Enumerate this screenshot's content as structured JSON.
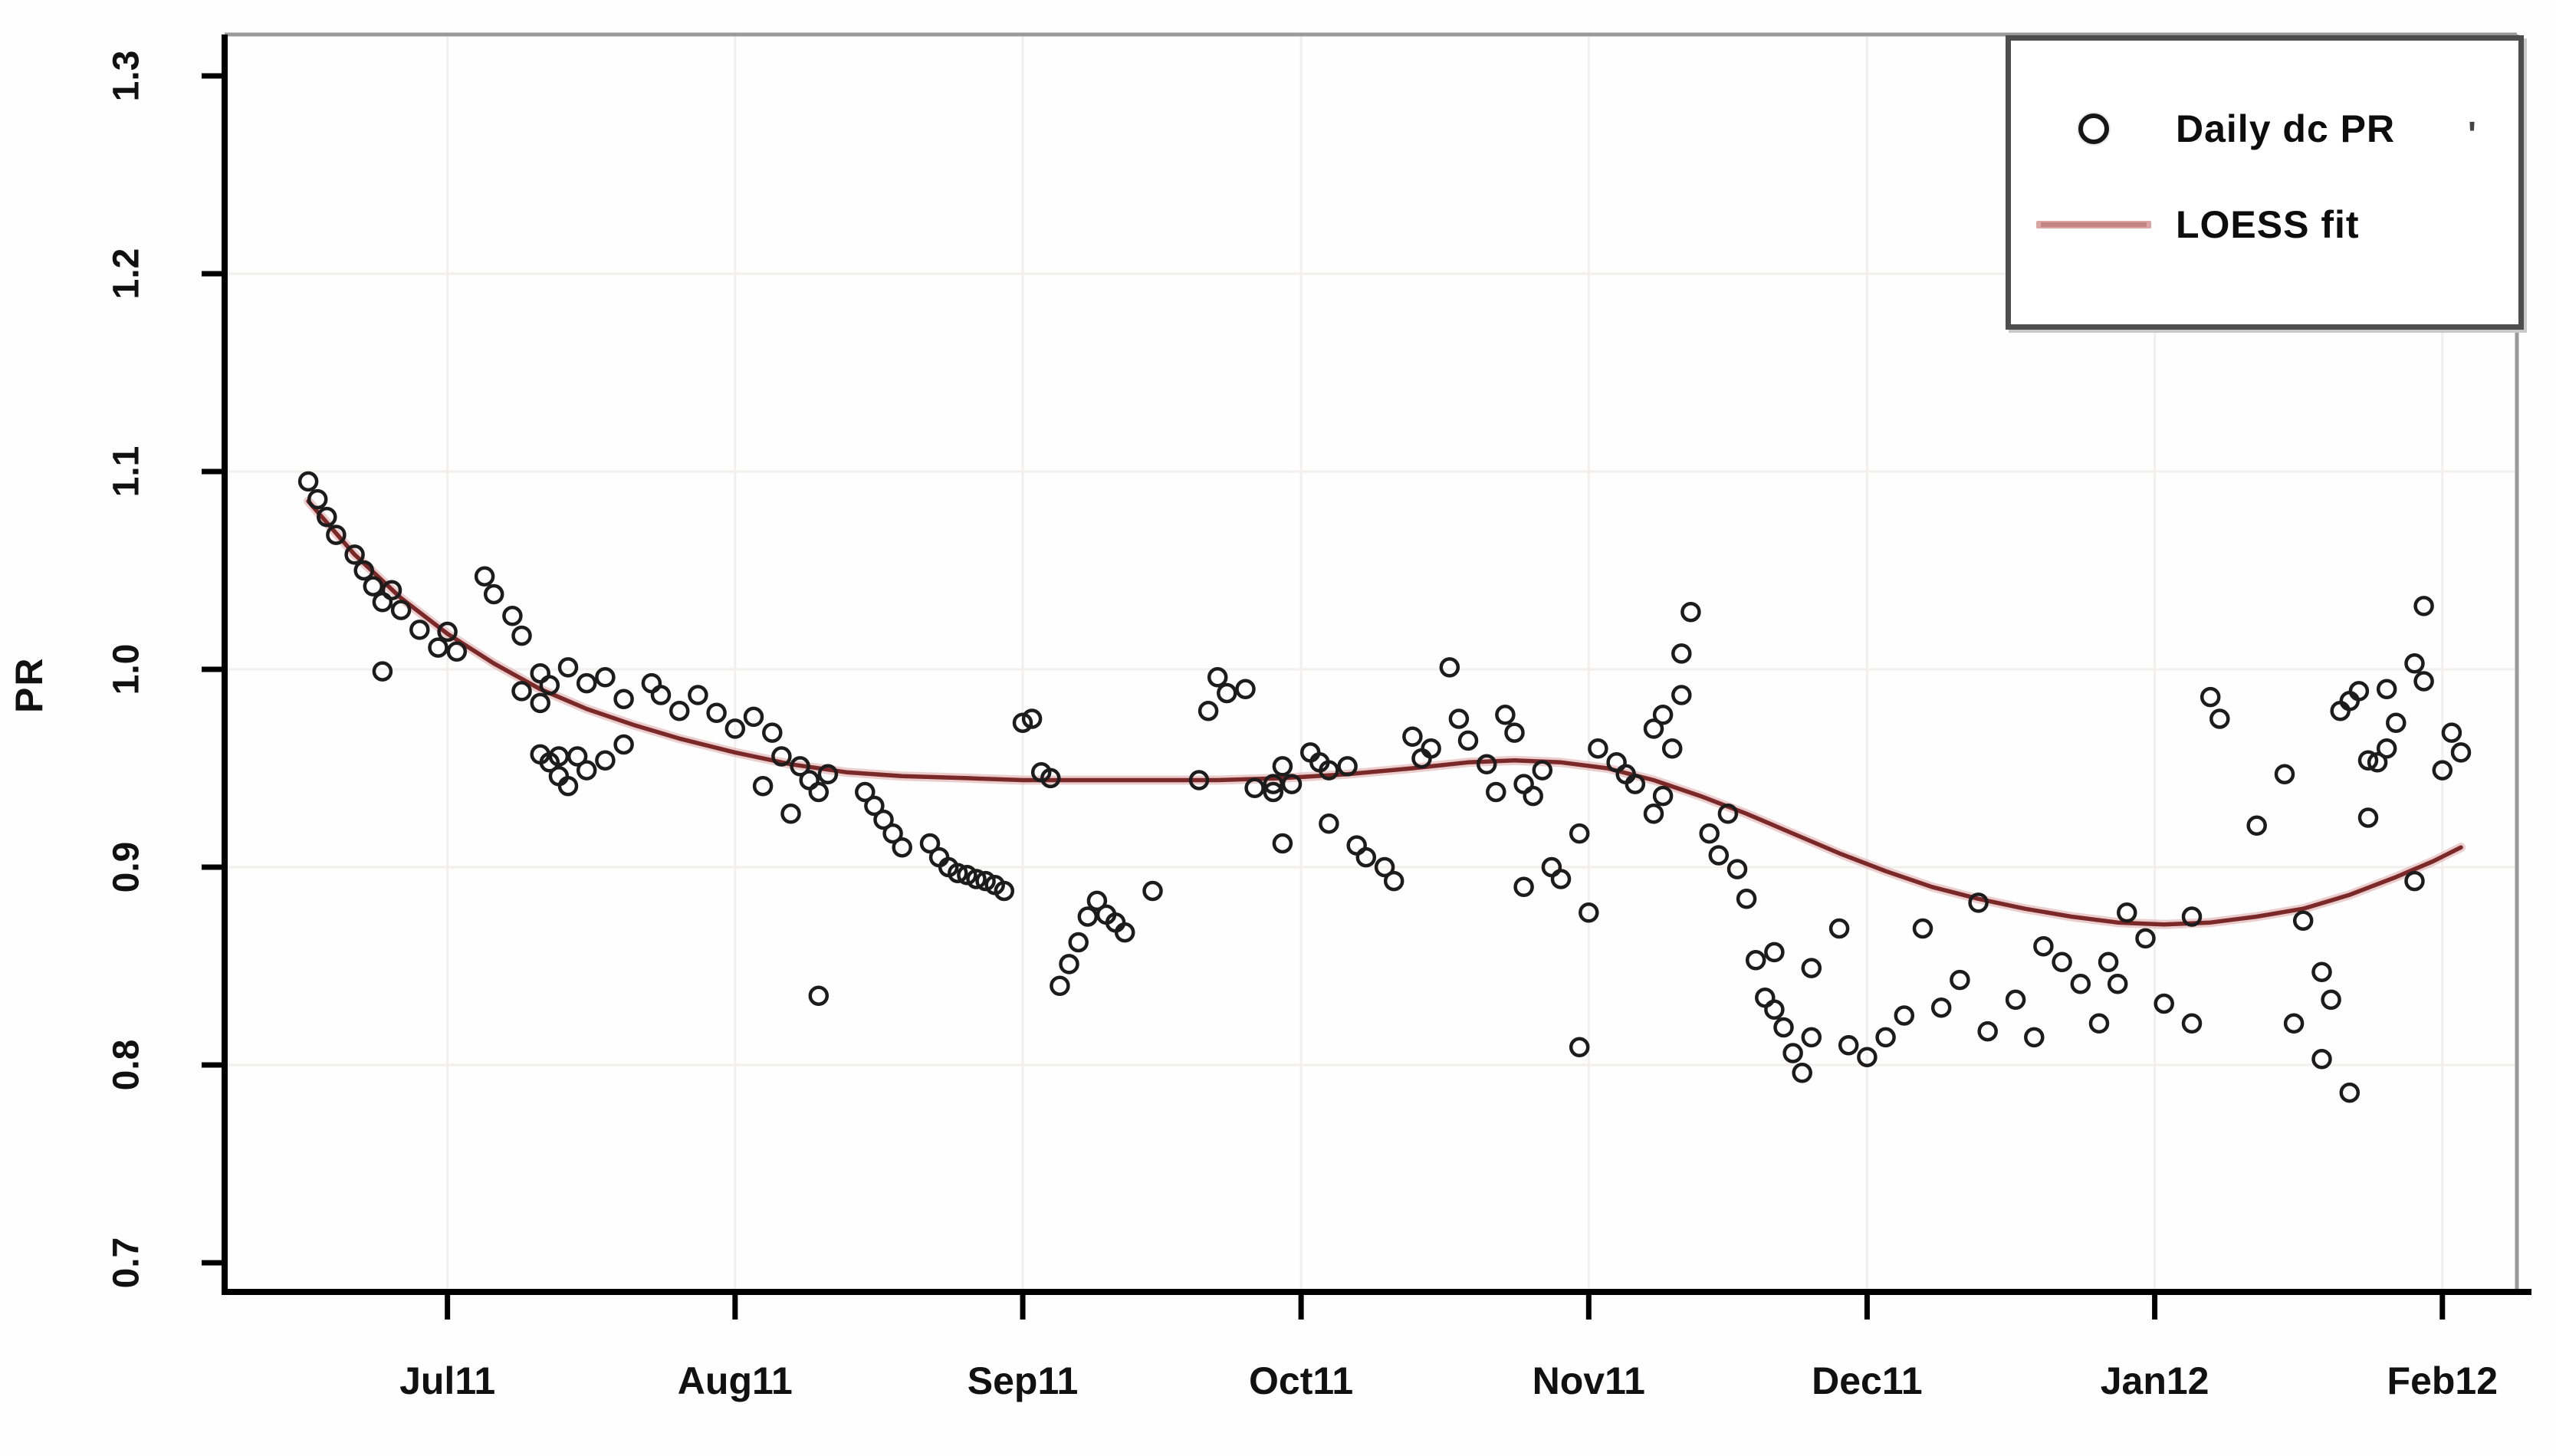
{
  "chart_data": {
    "type": "scatter",
    "title": "",
    "xlabel": "",
    "ylabel": "PR",
    "x_unit": "days since 2011-06-15",
    "xlim_days": [
      -8,
      240
    ],
    "ylim": [
      0.685,
      1.318
    ],
    "grid": "faint",
    "x_ticks": [
      {
        "day": 16,
        "label": "Jul11"
      },
      {
        "day": 47,
        "label": "Aug11"
      },
      {
        "day": 78,
        "label": "Sep11"
      },
      {
        "day": 108,
        "label": "Oct11"
      },
      {
        "day": 139,
        "label": "Nov11"
      },
      {
        "day": 169,
        "label": "Dec11"
      },
      {
        "day": 200,
        "label": "Jan12"
      },
      {
        "day": 231,
        "label": "Feb12"
      }
    ],
    "y_ticks": [
      {
        "value": 0.7,
        "label": "0.7"
      },
      {
        "value": 0.8,
        "label": "0.8"
      },
      {
        "value": 0.9,
        "label": "0.9"
      },
      {
        "value": 1.0,
        "label": "1.0"
      },
      {
        "value": 1.1,
        "label": "1.1"
      },
      {
        "value": 1.2,
        "label": "1.2"
      },
      {
        "value": 1.3,
        "label": "1.3"
      }
    ],
    "legend": {
      "position": "top-right",
      "items": [
        "Daily dc PR",
        "LOESS fit"
      ],
      "stray_mark": "'"
    },
    "colors": {
      "point_stroke": "#1c1c1c",
      "loess_core": "#7b2828",
      "loess_halo": "#dba4a4",
      "axis": "#000000",
      "frame": "#9a9a9a",
      "gridline": "#f2f0ef",
      "text": "#111111",
      "legend_border": "#4e4e4e",
      "background": "#ffffff"
    },
    "series": [
      {
        "name": "Daily dc PR",
        "type": "scatter",
        "marker": "open-circle",
        "color": "#1c1c1c",
        "points": [
          [
            1,
            1.095
          ],
          [
            2,
            1.086
          ],
          [
            3,
            1.077
          ],
          [
            4,
            1.068
          ],
          [
            6,
            1.058
          ],
          [
            7,
            1.05
          ],
          [
            8,
            1.042
          ],
          [
            9,
            1.034
          ],
          [
            9,
            0.999
          ],
          [
            10,
            1.04
          ],
          [
            11,
            1.03
          ],
          [
            13,
            1.02
          ],
          [
            15,
            1.011
          ],
          [
            16,
            1.019
          ],
          [
            17,
            1.009
          ],
          [
            20,
            1.047
          ],
          [
            21,
            1.038
          ],
          [
            23,
            1.027
          ],
          [
            24,
            1.017
          ],
          [
            24,
            0.989
          ],
          [
            26,
            0.983
          ],
          [
            28,
            0.956
          ],
          [
            30,
            0.956
          ],
          [
            26,
            0.998
          ],
          [
            27,
            0.992
          ],
          [
            29,
            1.001
          ],
          [
            31,
            0.993
          ],
          [
            33,
            0.996
          ],
          [
            35,
            0.985
          ],
          [
            26,
            0.957
          ],
          [
            27,
            0.953
          ],
          [
            28,
            0.946
          ],
          [
            29,
            0.941
          ],
          [
            31,
            0.949
          ],
          [
            33,
            0.954
          ],
          [
            35,
            0.962
          ],
          [
            38,
            0.993
          ],
          [
            39,
            0.987
          ],
          [
            41,
            0.979
          ],
          [
            43,
            0.987
          ],
          [
            45,
            0.978
          ],
          [
            47,
            0.97
          ],
          [
            49,
            0.976
          ],
          [
            51,
            0.968
          ],
          [
            52,
            0.956
          ],
          [
            54,
            0.951
          ],
          [
            55,
            0.944
          ],
          [
            56,
            0.938
          ],
          [
            57,
            0.947
          ],
          [
            50,
            0.941
          ],
          [
            53,
            0.927
          ],
          [
            56,
            0.835
          ],
          [
            61,
            0.938
          ],
          [
            62,
            0.931
          ],
          [
            63,
            0.924
          ],
          [
            64,
            0.917
          ],
          [
            65,
            0.91
          ],
          [
            68,
            0.912
          ],
          [
            69,
            0.905
          ],
          [
            70,
            0.9
          ],
          [
            71,
            0.897
          ],
          [
            72,
            0.896
          ],
          [
            73,
            0.894
          ],
          [
            74,
            0.893
          ],
          [
            75,
            0.891
          ],
          [
            76,
            0.888
          ],
          [
            78,
            0.973
          ],
          [
            79,
            0.975
          ],
          [
            80,
            0.948
          ],
          [
            81,
            0.945
          ],
          [
            82,
            0.84
          ],
          [
            83,
            0.851
          ],
          [
            84,
            0.862
          ],
          [
            85,
            0.875
          ],
          [
            86,
            0.883
          ],
          [
            87,
            0.876
          ],
          [
            88,
            0.872
          ],
          [
            89,
            0.867
          ],
          [
            92,
            0.888
          ],
          [
            97,
            0.944
          ],
          [
            98,
            0.979
          ],
          [
            99,
            0.996
          ],
          [
            100,
            0.988
          ],
          [
            102,
            0.99
          ],
          [
            103,
            0.94
          ],
          [
            105,
            0.942
          ],
          [
            105,
            0.938
          ],
          [
            106,
            0.912
          ],
          [
            106,
            0.951
          ],
          [
            107,
            0.942
          ],
          [
            109,
            0.958
          ],
          [
            110,
            0.953
          ],
          [
            111,
            0.949
          ],
          [
            113,
            0.951
          ],
          [
            111,
            0.922
          ],
          [
            114,
            0.911
          ],
          [
            115,
            0.905
          ],
          [
            117,
            0.9
          ],
          [
            118,
            0.893
          ],
          [
            120,
            0.966
          ],
          [
            121,
            0.955
          ],
          [
            122,
            0.96
          ],
          [
            124,
            1.001
          ],
          [
            125,
            0.975
          ],
          [
            126,
            0.964
          ],
          [
            128,
            0.952
          ],
          [
            129,
            0.938
          ],
          [
            130,
            0.977
          ],
          [
            131,
            0.968
          ],
          [
            132,
            0.942
          ],
          [
            133,
            0.936
          ],
          [
            134,
            0.949
          ],
          [
            132,
            0.89
          ],
          [
            135,
            0.9
          ],
          [
            136,
            0.894
          ],
          [
            138,
            0.917
          ],
          [
            139,
            0.877
          ],
          [
            138,
            0.809
          ],
          [
            140,
            0.96
          ],
          [
            142,
            0.953
          ],
          [
            143,
            0.947
          ],
          [
            144,
            0.942
          ],
          [
            146,
            0.97
          ],
          [
            147,
            0.977
          ],
          [
            148,
            0.96
          ],
          [
            147,
            0.936
          ],
          [
            146,
            0.927
          ],
          [
            149,
            1.008
          ],
          [
            149,
            0.987
          ],
          [
            150,
            1.029
          ],
          [
            152,
            0.917
          ],
          [
            153,
            0.906
          ],
          [
            154,
            0.927
          ],
          [
            155,
            0.899
          ],
          [
            156,
            0.884
          ],
          [
            157,
            0.853
          ],
          [
            158,
            0.834
          ],
          [
            159,
            0.857
          ],
          [
            159,
            0.828
          ],
          [
            160,
            0.819
          ],
          [
            161,
            0.806
          ],
          [
            162,
            0.796
          ],
          [
            163,
            0.849
          ],
          [
            163,
            0.814
          ],
          [
            166,
            0.869
          ],
          [
            167,
            0.81
          ],
          [
            169,
            0.804
          ],
          [
            171,
            0.814
          ],
          [
            173,
            0.825
          ],
          [
            175,
            0.869
          ],
          [
            177,
            0.829
          ],
          [
            179,
            0.843
          ],
          [
            181,
            0.882
          ],
          [
            182,
            0.817
          ],
          [
            185,
            0.833
          ],
          [
            187,
            0.814
          ],
          [
            188,
            0.86
          ],
          [
            190,
            0.852
          ],
          [
            192,
            0.841
          ],
          [
            194,
            0.821
          ],
          [
            195,
            0.852
          ],
          [
            196,
            0.841
          ],
          [
            197,
            0.877
          ],
          [
            199,
            0.864
          ],
          [
            201,
            0.831
          ],
          [
            204,
            0.875
          ],
          [
            204,
            0.821
          ],
          [
            206,
            0.986
          ],
          [
            207,
            0.975
          ],
          [
            211,
            0.921
          ],
          [
            214,
            0.947
          ],
          [
            215,
            0.821
          ],
          [
            216,
            0.873
          ],
          [
            218,
            0.847
          ],
          [
            218,
            0.803
          ],
          [
            219,
            0.833
          ],
          [
            220,
            0.979
          ],
          [
            221,
            0.984
          ],
          [
            221,
            0.786
          ],
          [
            222,
            0.989
          ],
          [
            223,
            0.925
          ],
          [
            223,
            0.954
          ],
          [
            224,
            0.953
          ],
          [
            225,
            0.99
          ],
          [
            225,
            0.96
          ],
          [
            226,
            0.973
          ],
          [
            228,
            1.003
          ],
          [
            228,
            0.893
          ],
          [
            229,
            1.032
          ],
          [
            229,
            0.994
          ],
          [
            231,
            0.949
          ],
          [
            232,
            0.968
          ],
          [
            233,
            0.958
          ]
        ]
      },
      {
        "name": "LOESS fit",
        "type": "line",
        "color": "#7b2828",
        "halo": "#dba4a4",
        "points": [
          [
            1,
            1.085
          ],
          [
            6,
            1.058
          ],
          [
            11,
            1.036
          ],
          [
            16,
            1.018
          ],
          [
            21,
            1.003
          ],
          [
            26,
            0.99
          ],
          [
            31,
            0.98
          ],
          [
            36,
            0.972
          ],
          [
            41,
            0.965
          ],
          [
            47,
            0.958
          ],
          [
            53,
            0.952
          ],
          [
            59,
            0.948
          ],
          [
            65,
            0.946
          ],
          [
            72,
            0.945
          ],
          [
            78,
            0.944
          ],
          [
            85,
            0.944
          ],
          [
            92,
            0.944
          ],
          [
            99,
            0.944
          ],
          [
            106,
            0.945
          ],
          [
            113,
            0.947
          ],
          [
            120,
            0.95
          ],
          [
            126,
            0.953
          ],
          [
            131,
            0.954
          ],
          [
            136,
            0.953
          ],
          [
            141,
            0.95
          ],
          [
            146,
            0.944
          ],
          [
            151,
            0.936
          ],
          [
            156,
            0.927
          ],
          [
            161,
            0.917
          ],
          [
            166,
            0.907
          ],
          [
            171,
            0.898
          ],
          [
            176,
            0.89
          ],
          [
            181,
            0.884
          ],
          [
            186,
            0.879
          ],
          [
            191,
            0.875
          ],
          [
            196,
            0.872
          ],
          [
            201,
            0.871
          ],
          [
            206,
            0.872
          ],
          [
            211,
            0.875
          ],
          [
            216,
            0.879
          ],
          [
            221,
            0.886
          ],
          [
            226,
            0.895
          ],
          [
            230,
            0.903
          ],
          [
            233,
            0.91
          ]
        ]
      }
    ]
  }
}
